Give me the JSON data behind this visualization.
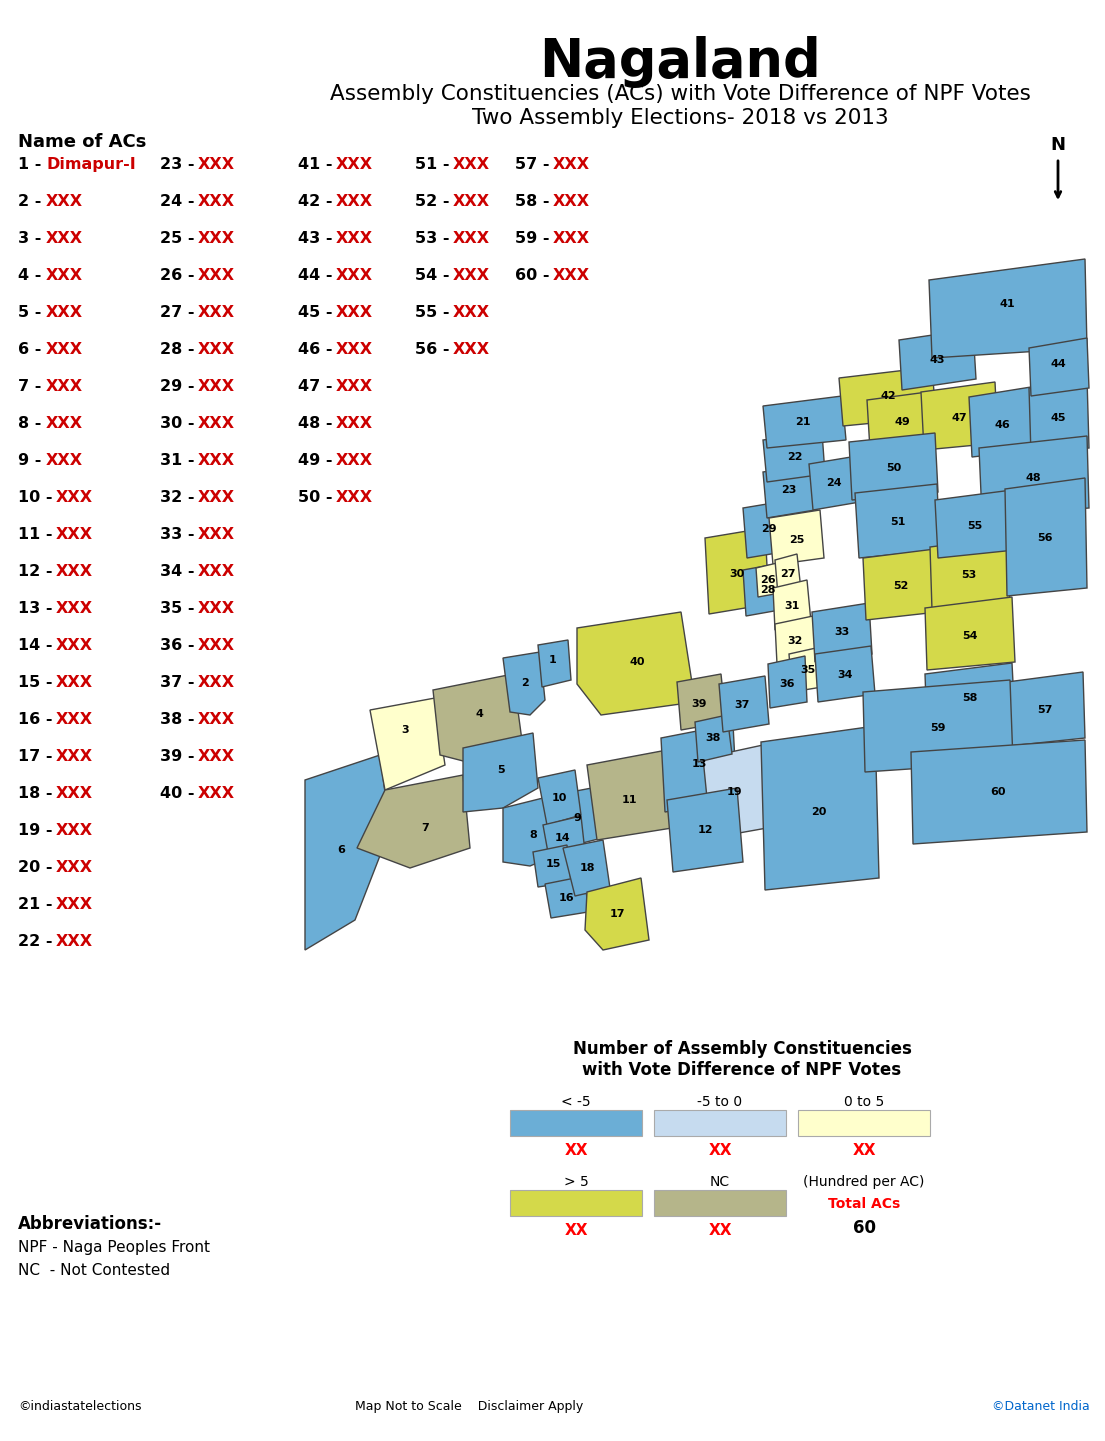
{
  "title": "Nagaland",
  "subtitle1": "Assembly Constituencies (ACs) with Vote Difference of NPF Votes",
  "subtitle2": "Two Assembly Elections- 2018 vs 2013",
  "legend_title": "Number of Assembly Constituencies\nwith Vote Difference of NPF Votes",
  "ac_list_header": "Name of ACs",
  "ac_special": {
    "1": "Dimapur-I"
  },
  "abbreviations": [
    "NPF - Naga Peoples Front",
    "NC  - Not Contested"
  ],
  "colors": {
    "blue_dark": "#6baed6",
    "blue_light": "#c6dbef",
    "yellow_light": "#ffffcc",
    "yellow_dark": "#d4d94a",
    "tan": "#b5b58a"
  },
  "constituency_colors": {
    "1": "#6baed6",
    "2": "#6baed6",
    "3": "#ffffcc",
    "4": "#b5b58a",
    "5": "#6baed6",
    "6": "#6baed6",
    "7": "#b5b58a",
    "8": "#6baed6",
    "9": "#6baed6",
    "10": "#6baed6",
    "11": "#b5b58a",
    "12": "#6baed6",
    "13": "#6baed6",
    "14": "#6baed6",
    "15": "#6baed6",
    "16": "#6baed6",
    "17": "#d4d94a",
    "18": "#6baed6",
    "19": "#c6dbef",
    "20": "#6baed6",
    "21": "#6baed6",
    "22": "#6baed6",
    "23": "#6baed6",
    "24": "#6baed6",
    "25": "#ffffcc",
    "26": "#ffffcc",
    "27": "#ffffcc",
    "28": "#6baed6",
    "29": "#6baed6",
    "30": "#d4d94a",
    "31": "#ffffcc",
    "32": "#ffffcc",
    "33": "#6baed6",
    "34": "#6baed6",
    "35": "#ffffcc",
    "36": "#6baed6",
    "37": "#6baed6",
    "38": "#6baed6",
    "39": "#b5b58a",
    "40": "#d4d94a",
    "41": "#6baed6",
    "42": "#d4d94a",
    "43": "#6baed6",
    "44": "#6baed6",
    "45": "#6baed6",
    "46": "#6baed6",
    "47": "#d4d94a",
    "48": "#6baed6",
    "49": "#d4d94a",
    "50": "#6baed6",
    "51": "#6baed6",
    "52": "#d4d94a",
    "53": "#d4d94a",
    "54": "#d4d94a",
    "55": "#6baed6",
    "56": "#6baed6",
    "57": "#6baed6",
    "58": "#6baed6",
    "59": "#6baed6",
    "60": "#6baed6"
  }
}
